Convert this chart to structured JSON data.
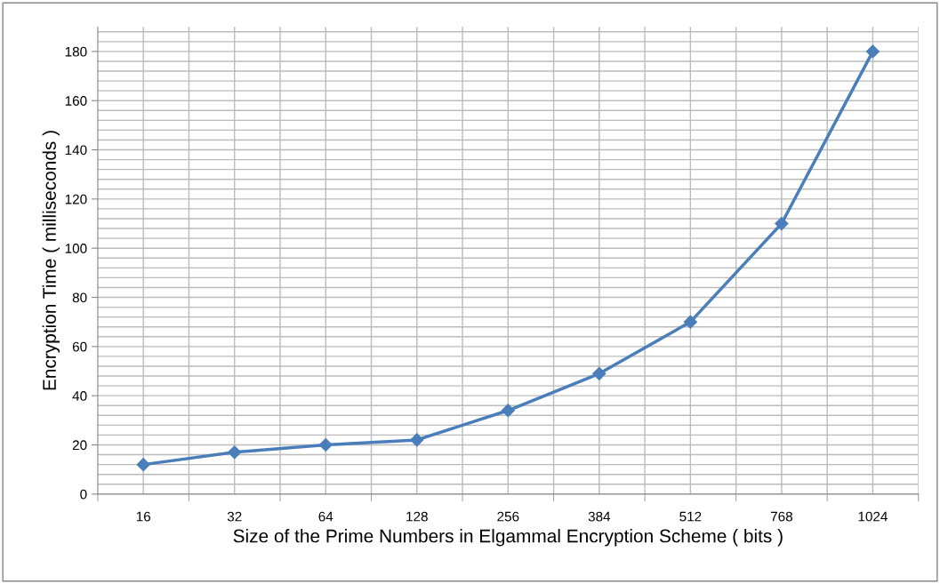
{
  "chart_data": {
    "type": "line",
    "xlabel": "Size of the Prime Numbers in Elgammal Encryption Scheme ( bits )",
    "ylabel": "Encryption Time ( milliseconds )",
    "categories": [
      "16",
      "32",
      "64",
      "128",
      "256",
      "384",
      "512",
      "768",
      "1024"
    ],
    "series": [
      {
        "color": "#4a7ebb",
        "values": [
          12,
          17,
          20,
          22,
          34,
          49,
          70,
          110,
          180
        ]
      }
    ],
    "ylim": [
      0,
      190
    ],
    "yticks": [
      0,
      20,
      40,
      60,
      80,
      100,
      120,
      140,
      160,
      180
    ],
    "grid": true,
    "marker": "diamond",
    "line_style": "solid"
  }
}
